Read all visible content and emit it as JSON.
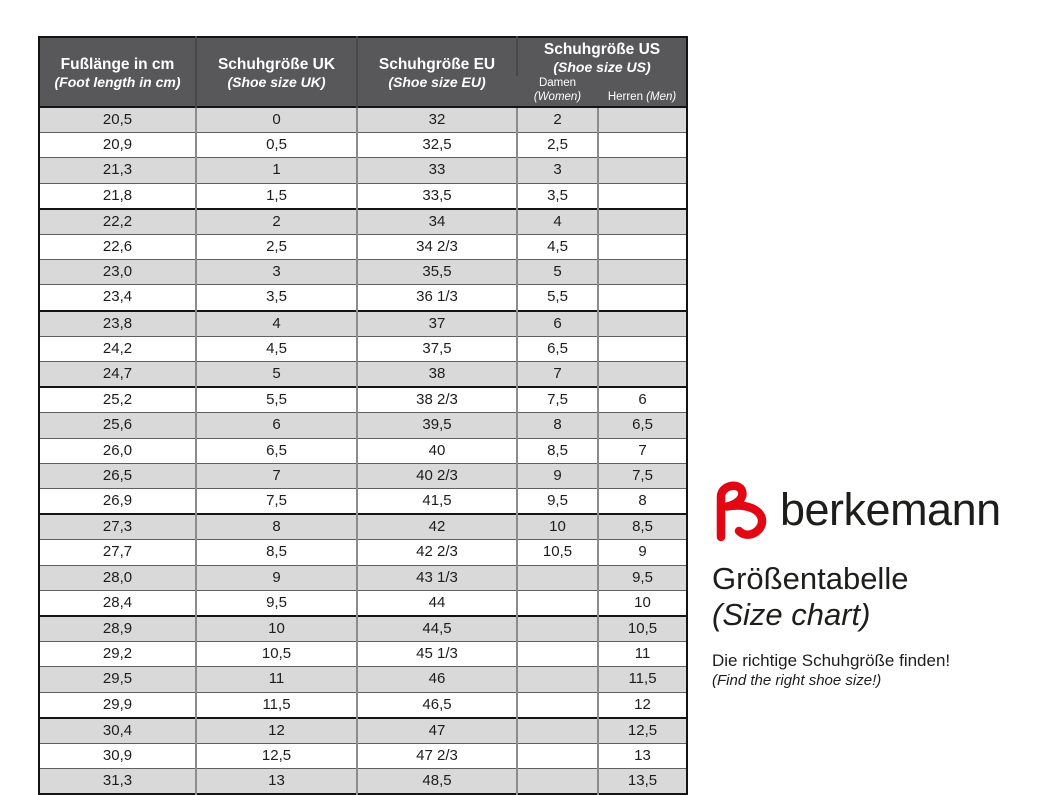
{
  "colors": {
    "header_bg": "#58585a",
    "header_text": "#ffffff",
    "row_shaded_bg": "#d9d9d9",
    "row_plain_bg": "#ffffff",
    "grid_thin": "#5f5f5f",
    "grid_thick": "#141414",
    "grid_vertical": "#8c8c8e",
    "logo_color": "#e30613",
    "text_dark": "#1d1d1b"
  },
  "table": {
    "columns": [
      {
        "title": "Fußlänge in cm",
        "subtitle": "(Foot length in cm)"
      },
      {
        "title": "Schuhgröße UK",
        "subtitle": "(Shoe size UK)"
      },
      {
        "title": "Schuhgröße EU",
        "subtitle": "(Shoe size EU)"
      },
      {
        "title": "Schuhgröße US",
        "subtitle": "(Shoe size US)",
        "subcolumns": [
          {
            "label": "Damen",
            "label_en": "(Women)"
          },
          {
            "label": "Herren",
            "label_en": "(Men)"
          }
        ]
      }
    ],
    "thick_separator_above_rows": [
      4,
      8,
      11,
      16,
      20,
      24
    ],
    "rows": [
      [
        "20,5",
        "0",
        "32",
        "2",
        ""
      ],
      [
        "20,9",
        "0,5",
        "32,5",
        "2,5",
        ""
      ],
      [
        "21,3",
        "1",
        "33",
        "3",
        ""
      ],
      [
        "21,8",
        "1,5",
        "33,5",
        "3,5",
        ""
      ],
      [
        "22,2",
        "2",
        "34",
        "4",
        ""
      ],
      [
        "22,6",
        "2,5",
        "34 2/3",
        "4,5",
        ""
      ],
      [
        "23,0",
        "3",
        "35,5",
        "5",
        ""
      ],
      [
        "23,4",
        "3,5",
        "36 1/3",
        "5,5",
        ""
      ],
      [
        "23,8",
        "4",
        "37",
        "6",
        ""
      ],
      [
        "24,2",
        "4,5",
        "37,5",
        "6,5",
        ""
      ],
      [
        "24,7",
        "5",
        "38",
        "7",
        ""
      ],
      [
        "25,2",
        "5,5",
        "38 2/3",
        "7,5",
        "6"
      ],
      [
        "25,6",
        "6",
        "39,5",
        "8",
        "6,5"
      ],
      [
        "26,0",
        "6,5",
        "40",
        "8,5",
        "7"
      ],
      [
        "26,5",
        "7",
        "40 2/3",
        "9",
        "7,5"
      ],
      [
        "26,9",
        "7,5",
        "41,5",
        "9,5",
        "8"
      ],
      [
        "27,3",
        "8",
        "42",
        "10",
        "8,5"
      ],
      [
        "27,7",
        "8,5",
        "42 2/3",
        "10,5",
        "9"
      ],
      [
        "28,0",
        "9",
        "43 1/3",
        "",
        "9,5"
      ],
      [
        "28,4",
        "9,5",
        "44",
        "",
        "10"
      ],
      [
        "28,9",
        "10",
        "44,5",
        "",
        "10,5"
      ],
      [
        "29,2",
        "10,5",
        "45 1/3",
        "",
        "11"
      ],
      [
        "29,5",
        "11",
        "46",
        "",
        "11,5"
      ],
      [
        "29,9",
        "11,5",
        "46,5",
        "",
        "12"
      ],
      [
        "30,4",
        "12",
        "47",
        "",
        "12,5"
      ],
      [
        "30,9",
        "12,5",
        "47 2/3",
        "",
        "13"
      ],
      [
        "31,3",
        "13",
        "48,5",
        "",
        "13,5"
      ]
    ]
  },
  "branding": {
    "brand_name": "berkemann",
    "logo_color": "#e30613",
    "title_de": "Größentabelle",
    "title_en": "(Size chart)",
    "tagline_de": "Die richtige Schuhgröße finden!",
    "tagline_en": "(Find the right shoe size!)"
  }
}
